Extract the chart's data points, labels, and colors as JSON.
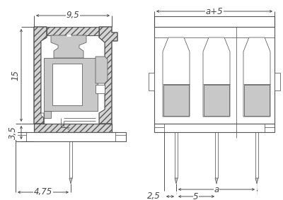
{
  "bg_color": "#ffffff",
  "line_color": "#555555",
  "gray_fill": "#c8c8c8",
  "hatch_fill": "#d4d4d4",
  "dim_color": "#444444",
  "dim_9_5": "9,5",
  "dim_15": "15",
  "dim_3_5": "3,5",
  "dim_4_75": "4,75",
  "dim_a5": "a+5",
  "dim_2_5": "2,5",
  "dim_5": "5",
  "dim_a": "a",
  "font_size": 8.5,
  "lw_main": 0.8,
  "lw_thin": 0.55,
  "lw_dim": 0.65
}
